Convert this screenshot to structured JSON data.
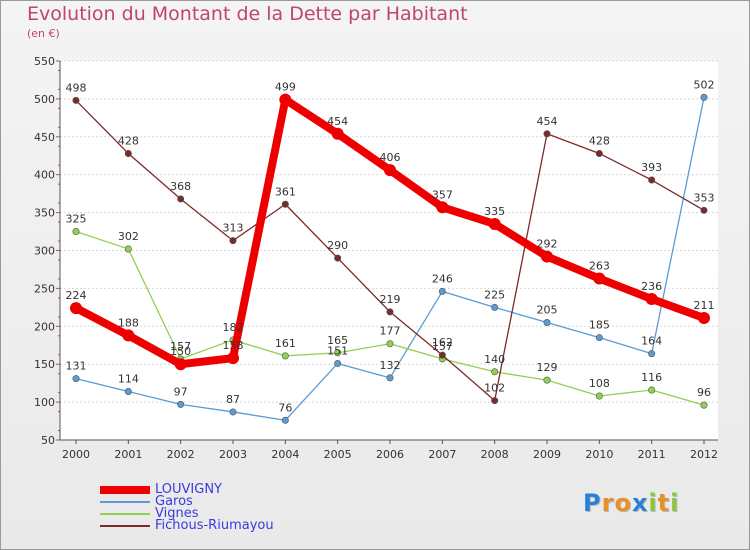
{
  "title": "Evolution du Montant de la Dette par Habitant",
  "subtitle": "(en €)",
  "logo": {
    "text": "Proxiti",
    "letters": [
      {
        "char": "P",
        "color": "#2a7fd6"
      },
      {
        "char": "r",
        "color": "#e8902a"
      },
      {
        "char": "o",
        "color": "#e8902a"
      },
      {
        "char": "x",
        "color": "#2a7fd6"
      },
      {
        "char": "i",
        "color": "#8cc63f"
      },
      {
        "char": "t",
        "color": "#e8902a"
      },
      {
        "char": "i",
        "color": "#8cc63f"
      }
    ]
  },
  "chart_data": {
    "type": "line",
    "title": "Evolution du Montant de la Dette par Habitant",
    "ylabel": "(en €)",
    "x": [
      "2000",
      "2001",
      "2002",
      "2003",
      "2004",
      "2005",
      "2006",
      "2007",
      "2008",
      "2009",
      "2010",
      "2011",
      "2012"
    ],
    "ylim": [
      50,
      550
    ],
    "yticks": [
      50,
      100,
      150,
      200,
      250,
      300,
      350,
      400,
      450,
      500,
      550
    ],
    "grid": "horizontal",
    "legend_position": "bottom-left",
    "series": [
      {
        "name": "LOUVIGNY",
        "color": "#ee0000",
        "highlight": true,
        "values": [
          224,
          188,
          150,
          158,
          499,
          454,
          406,
          357,
          335,
          292,
          263,
          236,
          211
        ]
      },
      {
        "name": "Garos",
        "color": "#5b9bd5",
        "highlight": false,
        "values": [
          131,
          114,
          97,
          87,
          76,
          151,
          132,
          246,
          225,
          205,
          185,
          164,
          502
        ]
      },
      {
        "name": "Vignes",
        "color": "#92d050",
        "highlight": false,
        "values": [
          325,
          302,
          157,
          182,
          161,
          165,
          177,
          157,
          140,
          129,
          108,
          116,
          96
        ]
      },
      {
        "name": "Fichous-Riumayou",
        "color": "#7a2b2b",
        "highlight": false,
        "values": [
          498,
          428,
          368,
          313,
          361,
          290,
          219,
          162,
          102,
          454,
          428,
          393,
          353
        ]
      }
    ]
  }
}
